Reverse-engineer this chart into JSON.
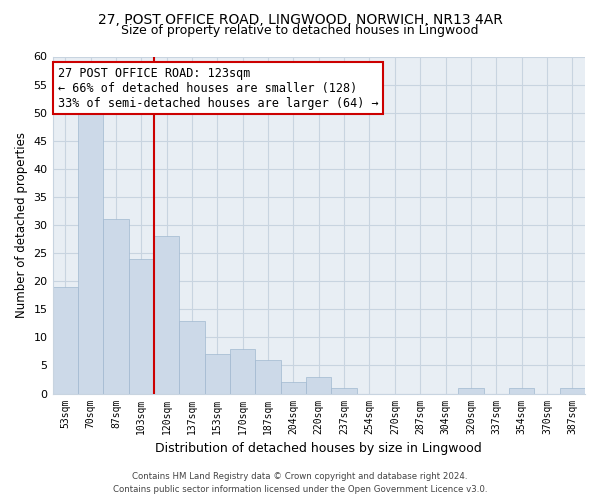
{
  "title": "27, POST OFFICE ROAD, LINGWOOD, NORWICH, NR13 4AR",
  "subtitle": "Size of property relative to detached houses in Lingwood",
  "xlabel": "Distribution of detached houses by size in Lingwood",
  "ylabel": "Number of detached properties",
  "bar_labels": [
    "53sqm",
    "70sqm",
    "87sqm",
    "103sqm",
    "120sqm",
    "137sqm",
    "153sqm",
    "170sqm",
    "187sqm",
    "204sqm",
    "220sqm",
    "237sqm",
    "254sqm",
    "270sqm",
    "287sqm",
    "304sqm",
    "320sqm",
    "337sqm",
    "354sqm",
    "370sqm",
    "387sqm"
  ],
  "bar_values": [
    19,
    50,
    31,
    24,
    28,
    13,
    7,
    8,
    6,
    2,
    3,
    1,
    0,
    0,
    0,
    0,
    1,
    0,
    1,
    0,
    1
  ],
  "bar_color": "#ccd9e8",
  "bar_edge_color": "#a0b8d0",
  "red_line_x": 4,
  "ylim": [
    0,
    60
  ],
  "yticks": [
    0,
    5,
    10,
    15,
    20,
    25,
    30,
    35,
    40,
    45,
    50,
    55,
    60
  ],
  "annotation_title": "27 POST OFFICE ROAD: 123sqm",
  "annotation_line1": "← 66% of detached houses are smaller (128)",
  "annotation_line2": "33% of semi-detached houses are larger (64) →",
  "annotation_box_color": "#cc0000",
  "footer1": "Contains HM Land Registry data © Crown copyright and database right 2024.",
  "footer2": "Contains public sector information licensed under the Open Government Licence v3.0.",
  "background_color": "#ffffff",
  "grid_color": "#c8d4e0",
  "plot_bg_color": "#e8eef4"
}
